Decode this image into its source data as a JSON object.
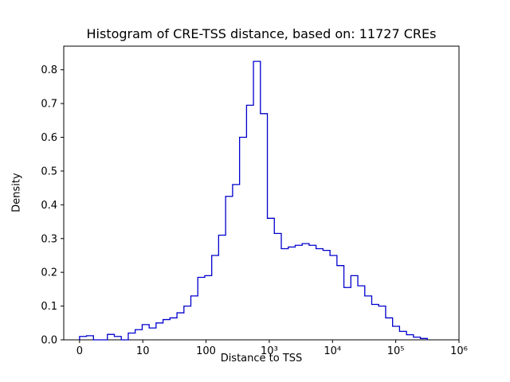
{
  "window": {
    "background": "#ffffff"
  },
  "chart_data": {
    "type": "histogram",
    "subtype": "step",
    "title": "Histogram of CRE-TSS distance, based on: 11727 CREs",
    "xlabel": "Distance to TSS",
    "ylabel": "Density",
    "x_scale": "symlog",
    "line_color": "#0000cd",
    "axis_color": "#000000",
    "grid": false,
    "legend": false,
    "x_ticks": [
      {
        "u": 0,
        "label": "0"
      },
      {
        "u": 1,
        "label": "10"
      },
      {
        "u": 2,
        "label": "100"
      },
      {
        "u": 3,
        "label": "10³"
      },
      {
        "u": 4,
        "label": "10⁴"
      },
      {
        "u": 5,
        "label": "10⁵"
      },
      {
        "u": 6,
        "label": "10⁶"
      }
    ],
    "y_ticks": [
      0.0,
      0.1,
      0.2,
      0.3,
      0.4,
      0.5,
      0.6,
      0.7,
      0.8
    ],
    "ylim": [
      0,
      0.87
    ],
    "xlim_u": [
      -0.25,
      6.0
    ],
    "bin_edges": [
      0,
      1.1,
      2.2,
      3.3,
      4.4,
      5.5,
      6.6,
      7.7,
      8.8,
      9.9,
      12.6,
      16.2,
      20.9,
      26.9,
      34.7,
      44.7,
      57.5,
      74.1,
      95.5,
      123,
      158,
      204,
      263,
      339,
      437,
      562,
      724,
      933,
      1202,
      1549,
      1995,
      2570,
      3311,
      4266,
      5495,
      7079,
      9120,
      11750,
      15140,
      19500,
      25120,
      32360,
      41690,
      53700,
      69180,
      89130,
      114800,
      147900,
      190500,
      245500,
      316200
    ],
    "densities": [
      0.01,
      0.012,
      0.0,
      0.0,
      0.016,
      0.01,
      0.0,
      0.02,
      0.03,
      0.045,
      0.035,
      0.05,
      0.06,
      0.065,
      0.08,
      0.1,
      0.13,
      0.185,
      0.19,
      0.25,
      0.31,
      0.425,
      0.46,
      0.6,
      0.695,
      0.825,
      0.67,
      0.36,
      0.315,
      0.27,
      0.275,
      0.28,
      0.285,
      0.28,
      0.27,
      0.265,
      0.25,
      0.22,
      0.155,
      0.19,
      0.16,
      0.13,
      0.105,
      0.1,
      0.065,
      0.04,
      0.025,
      0.015,
      0.008,
      0.004
    ]
  }
}
